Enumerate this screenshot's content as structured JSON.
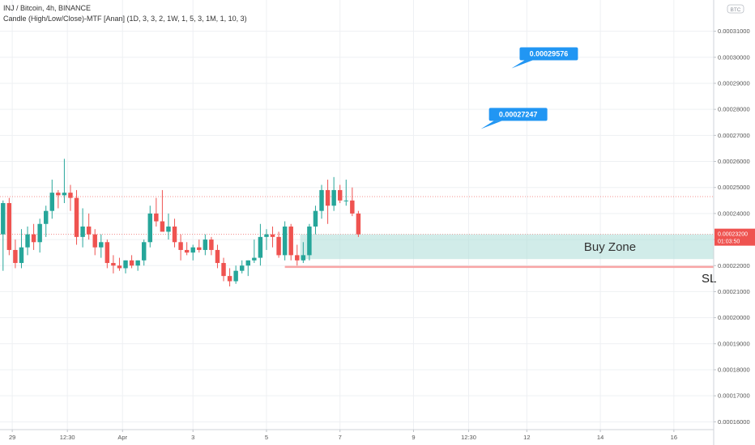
{
  "header": {
    "line1": "INJ / Bitcoin, 4h, BINANCE",
    "line2": "Candle (High/Low/Close)-MTF [Anan] (1D, 3, 3, 2, 1W, 1, 5, 3, 1M, 1, 10, 3)"
  },
  "badge": "BTC",
  "colors": {
    "up": "#26a69a",
    "down": "#ef5350",
    "zone": "#b2dfdb",
    "callout": "#2196f3",
    "sl_line": "#f8a5a5",
    "grid": "#eef0f3",
    "axis": "#555555"
  },
  "chart_data": {
    "type": "candlestick",
    "symbol": "INJ / Bitcoin",
    "timeframe": "4h",
    "exchange": "BINANCE",
    "y_ticks": [
      "0.00031000",
      "0.00030000",
      "0.00029000",
      "0.00028000",
      "0.00027000",
      "0.00026000",
      "0.00025000",
      "0.00024000",
      "0.00023000",
      "0.00022000",
      "0.00021000",
      "0.00020000",
      "0.00019000",
      "0.00018000",
      "0.00017000",
      "0.00016000"
    ],
    "ylim": [
      0.000157,
      0.000322
    ],
    "x_ticks": [
      {
        "label": "29",
        "index": 1.5
      },
      {
        "label": "12:30",
        "index": 10.5
      },
      {
        "label": "Apr",
        "index": 19.5
      },
      {
        "label": "3",
        "index": 31
      },
      {
        "label": "5",
        "index": 43
      },
      {
        "label": "7",
        "index": 55
      },
      {
        "label": "9",
        "index": 67
      },
      {
        "label": "12:30",
        "index": 76
      },
      {
        "label": "12",
        "index": 85.5
      },
      {
        "label": "14",
        "index": 97.5
      },
      {
        "label": "16",
        "index": 109.5
      }
    ],
    "x_index_range": [
      -0.5,
      116
    ],
    "candles": [
      [
        0.000232,
        0.000245,
        0.000218,
        0.000244
      ],
      [
        0.000244,
        0.000246,
        0.000224,
        0.000226
      ],
      [
        0.000226,
        0.00023,
        0.000219,
        0.000221
      ],
      [
        0.000221,
        0.000234,
        0.000219,
        0.000227
      ],
      [
        0.000227,
        0.000235,
        0.000224,
        0.000232
      ],
      [
        0.000232,
        0.000236,
        0.000226,
        0.000229
      ],
      [
        0.000229,
        0.000238,
        0.000225,
        0.000236
      ],
      [
        0.000236,
        0.000243,
        0.000231,
        0.000241
      ],
      [
        0.000241,
        0.000253,
        0.000238,
        0.000248
      ],
      [
        0.000248,
        0.000249,
        0.000242,
        0.000247
      ],
      [
        0.000247,
        0.000261,
        0.000244,
        0.000248
      ],
      [
        0.000248,
        0.000251,
        0.000241,
        0.000246
      ],
      [
        0.000246,
        0.000249,
        0.000228,
        0.000231
      ],
      [
        0.000231,
        0.000242,
        0.000227,
        0.000235
      ],
      [
        0.000235,
        0.00024,
        0.00023,
        0.000232
      ],
      [
        0.000232,
        0.000234,
        0.000224,
        0.000227
      ],
      [
        0.000227,
        0.000232,
        0.000223,
        0.000229
      ],
      [
        0.000229,
        0.00023,
        0.000219,
        0.000221
      ],
      [
        0.000221,
        0.000224,
        0.000217,
        0.00022
      ],
      [
        0.00022,
        0.000223,
        0.000218,
        0.000219
      ],
      [
        0.000219,
        0.000222,
        0.000217,
        0.000222
      ],
      [
        0.000222,
        0.000224,
        0.000219,
        0.00022
      ],
      [
        0.00022,
        0.000222,
        0.000218,
        0.000222
      ],
      [
        0.000222,
        0.00023,
        0.00022,
        0.000229
      ],
      [
        0.000229,
        0.000243,
        0.000227,
        0.00024
      ],
      [
        0.00024,
        0.000246,
        0.000235,
        0.000237
      ],
      [
        0.000237,
        0.000249,
        0.000234,
        0.000233
      ],
      [
        0.000233,
        0.00024,
        0.00023,
        0.000235
      ],
      [
        0.000235,
        0.000238,
        0.000227,
        0.000229
      ],
      [
        0.000229,
        0.000232,
        0.000222,
        0.000226
      ],
      [
        0.000226,
        0.000229,
        0.000224,
        0.000225
      ],
      [
        0.000225,
        0.000228,
        0.000222,
        0.000227
      ],
      [
        0.000227,
        0.00023,
        0.000225,
        0.000226
      ],
      [
        0.000226,
        0.000232,
        0.000224,
        0.00023
      ],
      [
        0.00023,
        0.000231,
        0.000224,
        0.000226
      ],
      [
        0.000226,
        0.000228,
        0.000219,
        0.000221
      ],
      [
        0.000221,
        0.000223,
        0.000214,
        0.000216
      ],
      [
        0.000216,
        0.000219,
        0.000212,
        0.000214
      ],
      [
        0.000214,
        0.00022,
        0.000213,
        0.000218
      ],
      [
        0.000218,
        0.000222,
        0.000217,
        0.00022
      ],
      [
        0.00022,
        0.000222,
        0.000216,
        0.000222
      ],
      [
        0.000222,
        0.00023,
        0.000221,
        0.000223
      ],
      [
        0.000223,
        0.000236,
        0.00022,
        0.000231
      ],
      [
        0.000231,
        0.000234,
        0.000226,
        0.000232
      ],
      [
        0.000232,
        0.000235,
        0.000227,
        0.000231
      ],
      [
        0.000231,
        0.000233,
        0.000223,
        0.000224
      ],
      [
        0.000224,
        0.000237,
        0.000222,
        0.000235
      ],
      [
        0.000235,
        0.000236,
        0.000222,
        0.000224
      ],
      [
        0.000224,
        0.000228,
        0.00022,
        0.000222
      ],
      [
        0.000222,
        0.000229,
        0.000221,
        0.000224
      ],
      [
        0.000224,
        0.000236,
        0.000222,
        0.000235
      ],
      [
        0.000235,
        0.000243,
        0.000232,
        0.000241
      ],
      [
        0.000241,
        0.000251,
        0.000238,
        0.000249
      ],
      [
        0.000249,
        0.000253,
        0.000236,
        0.000243
      ],
      [
        0.000243,
        0.000254,
        0.000241,
        0.000249
      ],
      [
        0.000249,
        0.000251,
        0.000244,
        0.000245
      ],
      [
        0.000245,
        0.000253,
        0.000243,
        0.000245
      ],
      [
        0.000245,
        0.00025,
        0.000239,
        0.00024
      ],
      [
        0.00024,
        0.000241,
        0.000231,
        0.000232
      ]
    ],
    "reference_lines": [
      {
        "value": 0.0002465,
        "style": "dotted",
        "color": "#ef5350"
      },
      {
        "value": 0.000232,
        "style": "dotted",
        "color": "#ef5350"
      }
    ],
    "buy_zone": {
      "label": "Buy Zone",
      "top": 0.000232,
      "bottom": 0.0002225,
      "start_index": 49
    },
    "stop_loss": {
      "label": "SL",
      "value": 0.0002195,
      "start_index": 46
    },
    "targets": [
      {
        "label": "0.00029576",
        "value": 0.00029576,
        "index": 83
      },
      {
        "label": "0.00027247",
        "value": 0.00027247,
        "index": 78
      }
    ],
    "last_price": {
      "label": "0.00023200",
      "countdown": "01:03:50",
      "value": 0.000232
    }
  }
}
